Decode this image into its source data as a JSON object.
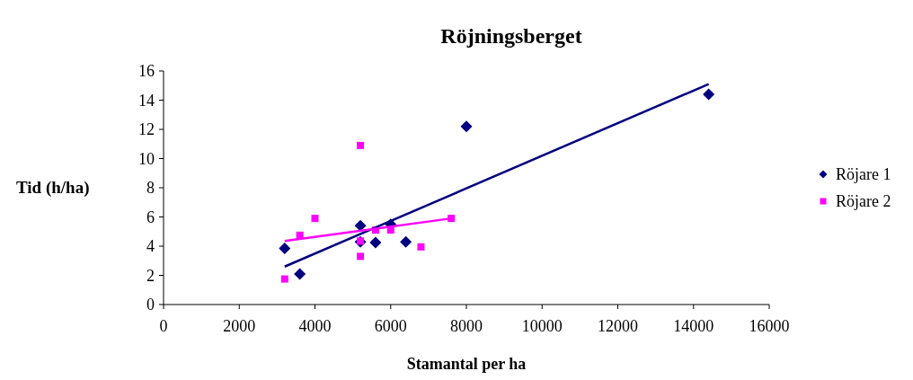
{
  "chart_data": {
    "type": "scatter",
    "title": "Röjningsberget",
    "xlabel": "Stamantal per ha",
    "ylabel": "Tid (h/ha)",
    "xlim": [
      0,
      16000
    ],
    "xticks": [
      0,
      2000,
      4000,
      6000,
      8000,
      10000,
      12000,
      14000,
      16000
    ],
    "ylim": [
      0,
      16
    ],
    "yticks": [
      0,
      2,
      4,
      6,
      8,
      10,
      12,
      14,
      16
    ],
    "grid": false,
    "legend": "right",
    "series": [
      {
        "name": "Röjare 1",
        "color": "#000080",
        "marker": "diamond",
        "x": [
          3200,
          3600,
          5200,
          5200,
          5600,
          6000,
          6400,
          8000,
          14400
        ],
        "values": [
          3.85,
          2.1,
          5.4,
          4.3,
          4.25,
          5.5,
          4.3,
          12.2,
          14.4
        ]
      },
      {
        "name": "Röjare 2",
        "color": "#ff00ff",
        "marker": "square",
        "x": [
          3200,
          3600,
          4000,
          5200,
          5200,
          5200,
          5600,
          6000,
          6800,
          7600
        ],
        "values": [
          1.75,
          4.75,
          5.9,
          10.9,
          4.35,
          3.3,
          5.1,
          5.1,
          3.95,
          5.9
        ]
      },
      {
        "type": "line",
        "color": "#000080",
        "x": [
          3200,
          14400
        ],
        "values": [
          2.6,
          15.1
        ]
      },
      {
        "type": "line",
        "color": "#ff00ff",
        "x": [
          3200,
          7600
        ],
        "values": [
          4.35,
          5.9
        ]
      }
    ]
  }
}
